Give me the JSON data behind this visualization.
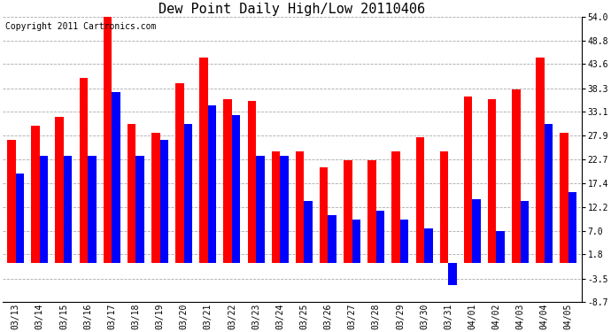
{
  "title": "Dew Point Daily High/Low 20110406",
  "copyright": "Copyright 2011 Cartronics.com",
  "dates": [
    "03/13",
    "03/14",
    "03/15",
    "03/16",
    "03/17",
    "03/18",
    "03/19",
    "03/20",
    "03/21",
    "03/22",
    "03/23",
    "03/24",
    "03/25",
    "03/26",
    "03/27",
    "03/28",
    "03/29",
    "03/30",
    "03/31",
    "04/01",
    "04/02",
    "04/03",
    "04/04",
    "04/05"
  ],
  "highs": [
    27.0,
    30.0,
    32.0,
    40.5,
    54.0,
    30.5,
    28.5,
    39.5,
    45.0,
    36.0,
    35.5,
    24.5,
    24.5,
    21.0,
    22.5,
    22.5,
    24.5,
    27.5,
    24.5,
    36.5,
    36.0,
    38.0,
    45.0,
    28.5
  ],
  "lows": [
    19.5,
    23.5,
    23.5,
    23.5,
    37.5,
    23.5,
    27.0,
    30.5,
    34.5,
    32.5,
    23.5,
    23.5,
    13.5,
    10.5,
    9.5,
    11.5,
    9.5,
    7.5,
    -5.0,
    14.0,
    7.0,
    13.5,
    30.5,
    15.5
  ],
  "high_color": "#ff0000",
  "low_color": "#0000ff",
  "bg_color": "#ffffff",
  "grid_color": "#aaaaaa",
  "ytick_labels": [
    "54.0",
    "48.8",
    "43.6",
    "38.3",
    "33.1",
    "27.9",
    "22.7",
    "17.4",
    "12.2",
    "7.0",
    "1.8",
    "-3.5",
    "-8.7"
  ],
  "ytick_values": [
    54.0,
    48.8,
    43.6,
    38.3,
    33.1,
    27.9,
    22.7,
    17.4,
    12.2,
    7.0,
    1.8,
    -3.5,
    -8.7
  ],
  "ylim_min": -8.7,
  "ylim_max": 54.0,
  "title_fontsize": 11,
  "copyright_fontsize": 7,
  "tick_fontsize": 7,
  "ytick_fontsize": 7,
  "bar_width": 0.35
}
